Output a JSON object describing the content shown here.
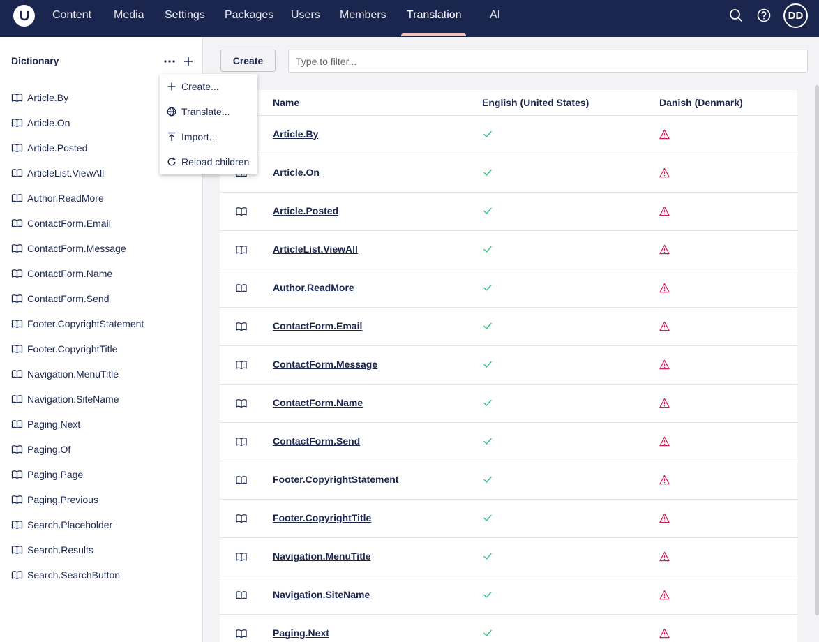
{
  "nav": {
    "items": [
      {
        "label": "Content"
      },
      {
        "label": "Media"
      },
      {
        "label": "Settings"
      },
      {
        "label": "Packages"
      },
      {
        "label": "Users"
      },
      {
        "label": "Members"
      },
      {
        "label": "Translation"
      },
      {
        "label": "AI"
      }
    ],
    "active": "Translation",
    "avatar_initials": "DD"
  },
  "sidebar": {
    "title": "Dictionary",
    "items": [
      "Article.By",
      "Article.On",
      "Article.Posted",
      "ArticleList.ViewAll",
      "Author.ReadMore",
      "ContactForm.Email",
      "ContactForm.Message",
      "ContactForm.Name",
      "ContactForm.Send",
      "Footer.CopyrightStatement",
      "Footer.CopyrightTitle",
      "Navigation.MenuTitle",
      "Navigation.SiteName",
      "Paging.Next",
      "Paging.Of",
      "Paging.Page",
      "Paging.Previous",
      "Search.Placeholder",
      "Search.Results",
      "Search.SearchButton"
    ]
  },
  "menu": {
    "items": [
      {
        "label": "Create...",
        "icon": "plus-icon"
      },
      {
        "label": "Translate...",
        "icon": "globe-icon"
      },
      {
        "label": "Import...",
        "icon": "import-icon"
      },
      {
        "label": "Reload children",
        "icon": "reload-icon"
      }
    ]
  },
  "toolbar": {
    "create_label": "Create",
    "filter_placeholder": "Type to filter..."
  },
  "table": {
    "headers": {
      "name": "Name",
      "lang1": "English (United States)",
      "lang2": "Danish (Denmark)"
    },
    "rows": [
      "Article.By",
      "Article.On",
      "Article.Posted",
      "ArticleList.ViewAll",
      "Author.ReadMore",
      "ContactForm.Email",
      "ContactForm.Message",
      "ContactForm.Name",
      "ContactForm.Send",
      "Footer.CopyrightStatement",
      "Footer.CopyrightTitle",
      "Navigation.MenuTitle",
      "Navigation.SiteName",
      "Paging.Next"
    ],
    "lang1_status": "translated",
    "lang2_status": "missing"
  },
  "colors": {
    "header_bg": "#1b264f",
    "active_underline": "#f5c1bc",
    "check": "#2bc37c",
    "warning": "#d42054"
  }
}
